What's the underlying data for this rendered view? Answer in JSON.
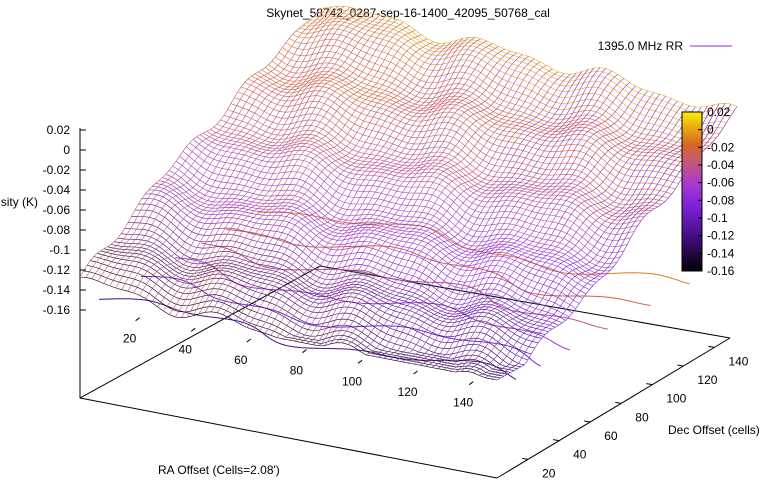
{
  "chart_data": {
    "type": "surface",
    "title": "Skynet_58742_0287-sep-16-1400_42095_50768_cal",
    "zlabel": "Intensity (K)",
    "xlabel": "RA Offset (Cells=2.08')",
    "ylabel": "Dec Offset (cells)",
    "legend": {
      "label": "1395.0 MHz RR",
      "color": "#8a2be2",
      "position": "top-right"
    },
    "x_ticks": [
      "20",
      "40",
      "60",
      "80",
      "100",
      "120",
      "140"
    ],
    "y_ticks": [
      "20",
      "40",
      "60",
      "80",
      "100",
      "120",
      "140"
    ],
    "z_ticks": [
      "0.02",
      "0",
      "-0.02",
      "-0.04",
      "-0.06",
      "-0.08",
      "-0.1",
      "-0.12",
      "-0.14",
      "-0.16"
    ],
    "colorbar_ticks": [
      "0.02",
      "0",
      "-0.02",
      "-0.04",
      "-0.06",
      "-0.08",
      "-0.1",
      "-0.12",
      "-0.14",
      "-0.16"
    ],
    "xlim": [
      0,
      150
    ],
    "ylim": [
      0,
      150
    ],
    "zlim": [
      -0.16,
      0.02
    ],
    "colormap": [
      "#000000",
      "#3a0a6e",
      "#7a20d8",
      "#a83ad0",
      "#c85a70",
      "#d86a20",
      "#e8a818",
      "#ffee00"
    ],
    "surface_min": -0.15,
    "surface_max": 0.02
  }
}
